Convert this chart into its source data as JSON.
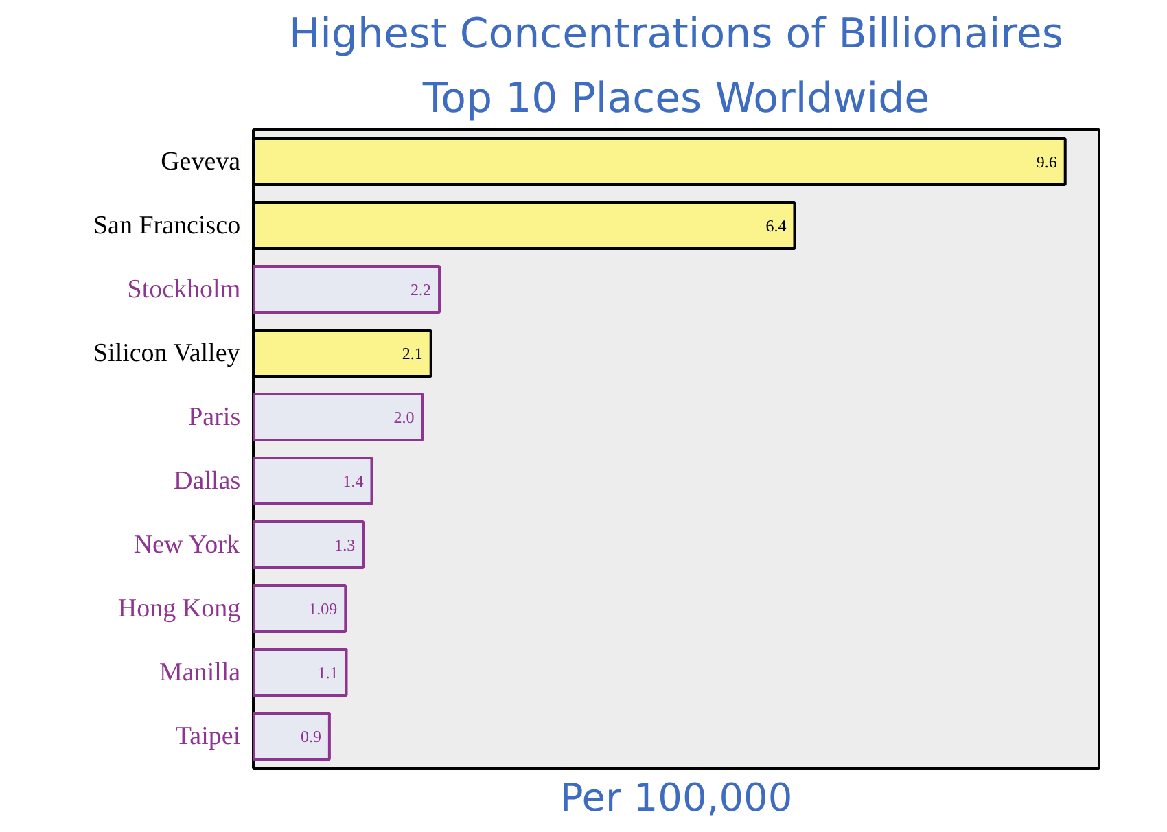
{
  "chart_data": {
    "type": "bar",
    "orientation": "horizontal",
    "title": "Highest Concentrations of Billionaires",
    "subtitle": "Top 10 Places Worldwide",
    "xlabel": "Per 100,000",
    "categories": [
      "Geveva",
      "San Francisco",
      "Stockholm",
      "Silicon Valley",
      "Paris",
      "Dallas",
      "New York",
      "Hong Kong",
      "Manilla",
      "Taipei"
    ],
    "values": [
      9.6,
      6.4,
      2.2,
      2.1,
      2.0,
      1.4,
      1.3,
      1.09,
      1.1,
      0.9
    ],
    "value_labels": [
      "9.6",
      "6.4",
      "2.2",
      "2.1",
      "2.0",
      "1.4",
      "1.3",
      "1.09",
      "1.1",
      "0.9"
    ],
    "colors": [
      "#fbf38c",
      "#fbf38c",
      "#e6e8f2",
      "#fbf38c",
      "#e6e8f2",
      "#e6e8f2",
      "#e6e8f2",
      "#e6e8f2",
      "#e6e8f2",
      "#e6e8f2"
    ],
    "xlim": [
      0,
      10
    ],
    "tick_labels": "y",
    "grid": false
  }
}
